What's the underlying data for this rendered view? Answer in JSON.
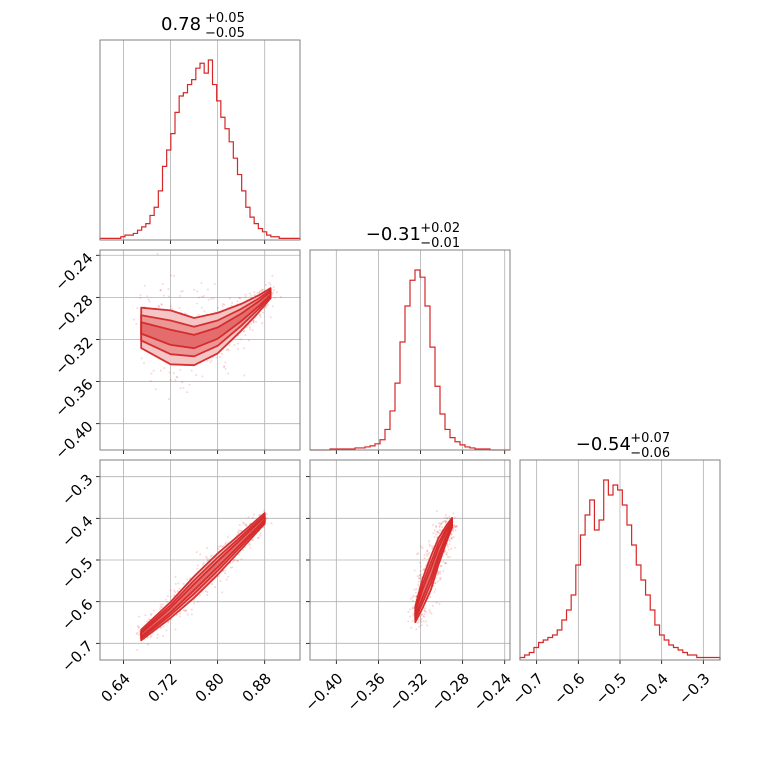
{
  "chart_data": {
    "type": "corner",
    "color": "#d62728",
    "fill_light": "#f4c3c3",
    "fill_mid": "#ec9494",
    "grid": true,
    "parameters": [
      {
        "median": "0.78",
        "plus": "+0.05",
        "minus": "−0.05"
      },
      {
        "median": "−0.31",
        "plus": "+0.02",
        "minus": "−0.01"
      },
      {
        "median": "−0.54",
        "plus": "+0.07",
        "minus": "−0.06"
      }
    ],
    "axes": {
      "p1": {
        "range": [
          0.6,
          0.94
        ],
        "ticks": [
          0.64,
          0.72,
          0.8,
          0.88
        ],
        "tick_labels": [
          "0.64",
          "0.72",
          "0.80",
          "0.88"
        ]
      },
      "p2": {
        "range": [
          -0.425,
          -0.235
        ],
        "ticks": [
          -0.4,
          -0.36,
          -0.32,
          -0.28,
          -0.24
        ],
        "tick_labels": [
          "−0.40",
          "−0.36",
          "−0.32",
          "−0.28",
          "−0.24"
        ]
      },
      "p3": {
        "range": [
          -0.74,
          -0.26
        ],
        "ticks": [
          -0.7,
          -0.6,
          -0.5,
          -0.4,
          -0.3
        ],
        "tick_labels": [
          "−0.7",
          "−0.6",
          "−0.5",
          "−0.4",
          "−0.3"
        ]
      }
    },
    "histograms": [
      {
        "param": "p1",
        "bin_range": [
          0.6,
          0.94
        ],
        "counts": [
          1,
          1,
          1,
          1,
          1,
          2,
          3,
          3,
          4,
          6,
          8,
          10,
          15,
          20,
          30,
          45,
          55,
          65,
          78,
          88,
          90,
          95,
          98,
          105,
          108,
          102,
          110,
          95,
          85,
          75,
          68,
          60,
          50,
          40,
          30,
          20,
          14,
          10,
          7,
          5,
          3,
          2,
          2,
          1,
          1,
          1,
          1,
          1
        ]
      },
      {
        "param": "p2",
        "bin_range": [
          -0.425,
          -0.235
        ],
        "counts": [
          0,
          0,
          0,
          0,
          1,
          1,
          1,
          1,
          1,
          2,
          2,
          3,
          4,
          6,
          10,
          20,
          38,
          65,
          105,
          140,
          165,
          175,
          168,
          140,
          100,
          62,
          35,
          20,
          12,
          8,
          5,
          3,
          2,
          1,
          1,
          1,
          0,
          0,
          0,
          0
        ]
      },
      {
        "param": "p3",
        "bin_range": [
          -0.74,
          -0.26
        ],
        "counts": [
          1,
          2,
          3,
          5,
          7,
          8,
          9,
          10,
          12,
          16,
          20,
          26,
          38,
          50,
          58,
          64,
          52,
          56,
          72,
          66,
          70,
          68,
          62,
          54,
          46,
          38,
          32,
          26,
          20,
          14,
          10,
          8,
          6,
          5,
          4,
          3,
          2,
          2,
          1,
          1,
          1,
          1,
          1
        ]
      }
    ],
    "pairs": [
      {
        "x": "p1",
        "y": "p2",
        "ridge": [
          [
            0.67,
            -0.309
          ],
          [
            0.72,
            -0.318
          ],
          [
            0.76,
            -0.322
          ],
          [
            0.8,
            -0.314
          ],
          [
            0.84,
            -0.299
          ],
          [
            0.87,
            -0.286
          ],
          [
            0.89,
            -0.276
          ]
        ],
        "width": [
          0.012,
          0.016,
          0.014,
          0.012,
          0.008,
          0.005,
          0.003
        ],
        "scatter_seed": 7
      },
      {
        "x": "p1",
        "y": "p3",
        "ridge": [
          [
            0.67,
            -0.68
          ],
          [
            0.72,
            -0.62
          ],
          [
            0.76,
            -0.565
          ],
          [
            0.8,
            -0.51
          ],
          [
            0.84,
            -0.455
          ],
          [
            0.88,
            -0.4
          ]
        ],
        "width": [
          0.008,
          0.012,
          0.016,
          0.016,
          0.012,
          0.008
        ],
        "scatter_seed": 11
      },
      {
        "x": "p2",
        "y": "p3",
        "ridge": [
          [
            -0.325,
            -0.63
          ],
          [
            -0.318,
            -0.58
          ],
          [
            -0.31,
            -0.53
          ],
          [
            -0.303,
            -0.48
          ],
          [
            -0.296,
            -0.44
          ],
          [
            -0.29,
            -0.41
          ]
        ],
        "width": [
          0.012,
          0.022,
          0.025,
          0.02,
          0.013,
          0.007
        ],
        "scatter_seed": 3
      }
    ]
  }
}
